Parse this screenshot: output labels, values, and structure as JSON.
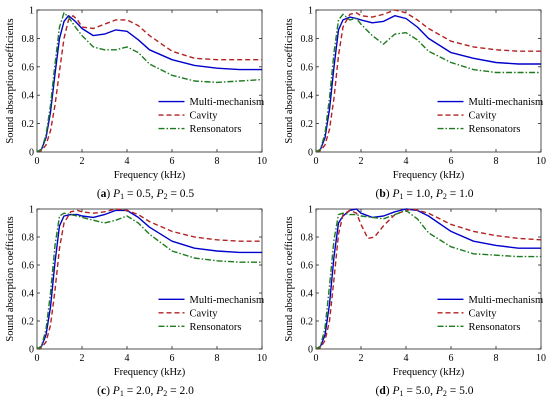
{
  "figure": {
    "background": "#ffffff",
    "series_styles": [
      {
        "name": "Multi-mechanism",
        "color": "#0000cc",
        "dash": "solid"
      },
      {
        "name": "Cavity",
        "color": "#b22222",
        "dash": "dashed"
      },
      {
        "name": "Rensonators",
        "color": "#1e7a1e",
        "dash": "dash-dot"
      }
    ]
  },
  "chart_data": [
    {
      "type": "line",
      "panel": "a",
      "caption": {
        "letter": "(a)",
        "p1_text": "= 0.5,",
        "p2_text": "= 0.5"
      },
      "xlabel": "Frequency (kHz)",
      "ylabel": "Sound absorption coefficients",
      "xlim": [
        0,
        10
      ],
      "ylim": [
        0,
        1
      ],
      "xticks": [
        "0",
        "2",
        "4",
        "6",
        "8",
        "10"
      ],
      "yticks": [
        "0",
        "0.2",
        "0.4",
        "0.6",
        "0.8",
        "1"
      ],
      "grid": false,
      "legend_position": "right-middle",
      "series": [
        {
          "name": "Multi-mechanism",
          "x": [
            0,
            0.2,
            0.4,
            0.6,
            0.8,
            1,
            1.2,
            1.4,
            1.7,
            2,
            2.5,
            3,
            3.5,
            4,
            4.5,
            5,
            6,
            7,
            8,
            9,
            10
          ],
          "y": [
            0,
            0.02,
            0.1,
            0.28,
            0.55,
            0.8,
            0.92,
            0.96,
            0.92,
            0.87,
            0.82,
            0.83,
            0.86,
            0.85,
            0.79,
            0.72,
            0.65,
            0.61,
            0.59,
            0.58,
            0.58
          ]
        },
        {
          "name": "Cavity",
          "x": [
            0,
            0.2,
            0.4,
            0.6,
            0.8,
            1,
            1.2,
            1.4,
            1.6,
            1.8,
            2,
            2.5,
            3,
            3.5,
            4,
            4.5,
            5,
            6,
            7,
            8,
            9,
            10
          ],
          "y": [
            0,
            0.01,
            0.05,
            0.15,
            0.33,
            0.57,
            0.8,
            0.93,
            0.96,
            0.93,
            0.88,
            0.87,
            0.9,
            0.93,
            0.93,
            0.89,
            0.82,
            0.71,
            0.66,
            0.65,
            0.65,
            0.65
          ]
        },
        {
          "name": "Rensonators",
          "x": [
            0,
            0.2,
            0.4,
            0.6,
            0.8,
            1,
            1.2,
            1.4,
            1.7,
            2,
            2.5,
            3,
            3.5,
            4,
            4.5,
            5,
            6,
            7,
            8,
            9,
            10
          ],
          "y": [
            0,
            0.02,
            0.12,
            0.33,
            0.62,
            0.88,
            0.98,
            0.95,
            0.88,
            0.82,
            0.74,
            0.72,
            0.72,
            0.74,
            0.7,
            0.62,
            0.54,
            0.5,
            0.49,
            0.5,
            0.51
          ]
        }
      ]
    },
    {
      "type": "line",
      "panel": "b",
      "caption": {
        "letter": "(b)",
        "p1_text": "= 1.0,",
        "p2_text": "= 1.0"
      },
      "xlabel": "Frequency (kHz)",
      "ylabel": "Sound absorption coefficients",
      "xlim": [
        0,
        10
      ],
      "ylim": [
        0,
        1
      ],
      "xticks": [
        "0",
        "2",
        "4",
        "6",
        "8",
        "10"
      ],
      "yticks": [
        "0",
        "0.2",
        "0.4",
        "0.6",
        "0.8",
        "1"
      ],
      "grid": false,
      "legend_position": "right-middle",
      "series": [
        {
          "name": "Multi-mechanism",
          "x": [
            0,
            0.2,
            0.4,
            0.6,
            0.8,
            1,
            1.2,
            1.5,
            1.8,
            2,
            2.5,
            3,
            3.5,
            4,
            4.5,
            5,
            6,
            7,
            8,
            9,
            10
          ],
          "y": [
            0,
            0.02,
            0.1,
            0.3,
            0.6,
            0.86,
            0.93,
            0.95,
            0.94,
            0.93,
            0.91,
            0.92,
            0.96,
            0.94,
            0.88,
            0.8,
            0.7,
            0.66,
            0.63,
            0.62,
            0.62
          ]
        },
        {
          "name": "Cavity",
          "x": [
            0,
            0.2,
            0.4,
            0.6,
            0.8,
            1,
            1.2,
            1.5,
            1.8,
            2,
            2.5,
            3,
            3.5,
            4,
            4.5,
            5,
            6,
            7,
            8,
            9,
            10
          ],
          "y": [
            0,
            0.01,
            0.05,
            0.16,
            0.38,
            0.68,
            0.88,
            0.97,
            0.98,
            0.96,
            0.95,
            0.97,
            1.0,
            0.98,
            0.93,
            0.87,
            0.78,
            0.74,
            0.72,
            0.71,
            0.71
          ]
        },
        {
          "name": "Rensonators",
          "x": [
            0,
            0.2,
            0.4,
            0.6,
            0.8,
            1,
            1.2,
            1.5,
            1.8,
            2,
            2.5,
            3,
            3.5,
            4,
            4.5,
            5,
            6,
            7,
            8,
            9,
            10
          ],
          "y": [
            0,
            0.02,
            0.13,
            0.38,
            0.7,
            0.93,
            0.97,
            0.93,
            0.94,
            0.9,
            0.82,
            0.76,
            0.83,
            0.84,
            0.79,
            0.71,
            0.63,
            0.58,
            0.56,
            0.56,
            0.56
          ]
        }
      ]
    },
    {
      "type": "line",
      "panel": "c",
      "caption": {
        "letter": "(c)",
        "p1_text": "= 2.0,",
        "p2_text": "= 2.0"
      },
      "xlabel": "Frequency (kHz)",
      "ylabel": "Sound absorption coefficients",
      "xlim": [
        0,
        10
      ],
      "ylim": [
        0,
        1
      ],
      "xticks": [
        "0",
        "2",
        "4",
        "6",
        "8",
        "10"
      ],
      "yticks": [
        "0",
        "0.2",
        "0.4",
        "0.6",
        "0.8",
        "1"
      ],
      "grid": false,
      "legend_position": "right-middle",
      "series": [
        {
          "name": "Multi-mechanism",
          "x": [
            0,
            0.2,
            0.4,
            0.6,
            0.8,
            1,
            1.2,
            1.5,
            1.8,
            2,
            2.5,
            3,
            3.5,
            4,
            4.5,
            5,
            6,
            7,
            8,
            9,
            10
          ],
          "y": [
            0,
            0.02,
            0.1,
            0.3,
            0.62,
            0.88,
            0.95,
            0.96,
            0.96,
            0.95,
            0.94,
            0.96,
            0.99,
            0.99,
            0.94,
            0.87,
            0.77,
            0.72,
            0.7,
            0.69,
            0.69
          ]
        },
        {
          "name": "Cavity",
          "x": [
            0,
            0.2,
            0.4,
            0.6,
            0.8,
            1,
            1.2,
            1.5,
            1.8,
            2,
            2.5,
            3,
            3.5,
            4,
            4.5,
            5,
            6,
            7,
            8,
            9,
            10
          ],
          "y": [
            0,
            0.01,
            0.05,
            0.17,
            0.42,
            0.72,
            0.9,
            0.98,
            0.99,
            0.98,
            0.97,
            0.98,
            1.0,
            0.99,
            0.96,
            0.91,
            0.84,
            0.8,
            0.78,
            0.77,
            0.77
          ]
        },
        {
          "name": "Rensonators",
          "x": [
            0,
            0.2,
            0.4,
            0.6,
            0.8,
            1,
            1.2,
            1.5,
            1.8,
            2,
            2.5,
            3,
            3.5,
            4,
            4.5,
            5,
            6,
            7,
            8,
            9,
            10
          ],
          "y": [
            0,
            0.02,
            0.14,
            0.4,
            0.74,
            0.95,
            0.97,
            0.96,
            0.95,
            0.94,
            0.92,
            0.9,
            0.92,
            0.95,
            0.9,
            0.82,
            0.7,
            0.65,
            0.63,
            0.62,
            0.62
          ]
        }
      ]
    },
    {
      "type": "line",
      "panel": "d",
      "caption": {
        "letter": "(d)",
        "p1_text": "= 5.0,",
        "p2_text": "= 5.0"
      },
      "xlabel": "Frequency (kHz)",
      "ylabel": "Sound absorption coefficients",
      "xlim": [
        0,
        10
      ],
      "ylim": [
        0,
        1
      ],
      "xticks": [
        "0",
        "2",
        "4",
        "6",
        "8",
        "10"
      ],
      "yticks": [
        "0",
        "0.2",
        "0.4",
        "0.6",
        "0.8",
        "1"
      ],
      "grid": false,
      "legend_position": "right-middle",
      "series": [
        {
          "name": "Multi-mechanism",
          "x": [
            0,
            0.2,
            0.4,
            0.6,
            0.8,
            1,
            1.2,
            1.5,
            1.8,
            2,
            2.5,
            3,
            3.5,
            4,
            4.5,
            5,
            6,
            7,
            8,
            9,
            10
          ],
          "y": [
            0,
            0.02,
            0.1,
            0.32,
            0.66,
            0.9,
            0.95,
            0.99,
            1.0,
            0.97,
            0.94,
            0.95,
            0.98,
            1.0,
            0.99,
            0.95,
            0.84,
            0.77,
            0.74,
            0.72,
            0.72
          ]
        },
        {
          "name": "Cavity",
          "x": [
            0,
            0.2,
            0.4,
            0.6,
            0.8,
            1,
            1.2,
            1.5,
            1.8,
            2,
            2.3,
            2.6,
            3,
            3.5,
            4,
            4.3,
            5,
            6,
            7,
            8,
            9,
            10
          ],
          "y": [
            0,
            0.01,
            0.06,
            0.2,
            0.5,
            0.82,
            0.96,
            0.99,
            0.97,
            0.89,
            0.79,
            0.8,
            0.88,
            0.96,
            0.99,
            1.0,
            0.97,
            0.89,
            0.84,
            0.81,
            0.79,
            0.78
          ]
        },
        {
          "name": "Rensonators",
          "x": [
            0,
            0.2,
            0.4,
            0.6,
            0.8,
            1,
            1.2,
            1.5,
            1.8,
            2,
            2.5,
            3,
            3.5,
            4,
            4.5,
            5,
            6,
            7,
            8,
            9,
            10
          ],
          "y": [
            0,
            0.02,
            0.15,
            0.45,
            0.78,
            0.96,
            0.97,
            0.96,
            0.96,
            0.95,
            0.94,
            0.93,
            0.96,
            0.99,
            0.93,
            0.83,
            0.73,
            0.68,
            0.67,
            0.66,
            0.66
          ]
        }
      ]
    }
  ]
}
